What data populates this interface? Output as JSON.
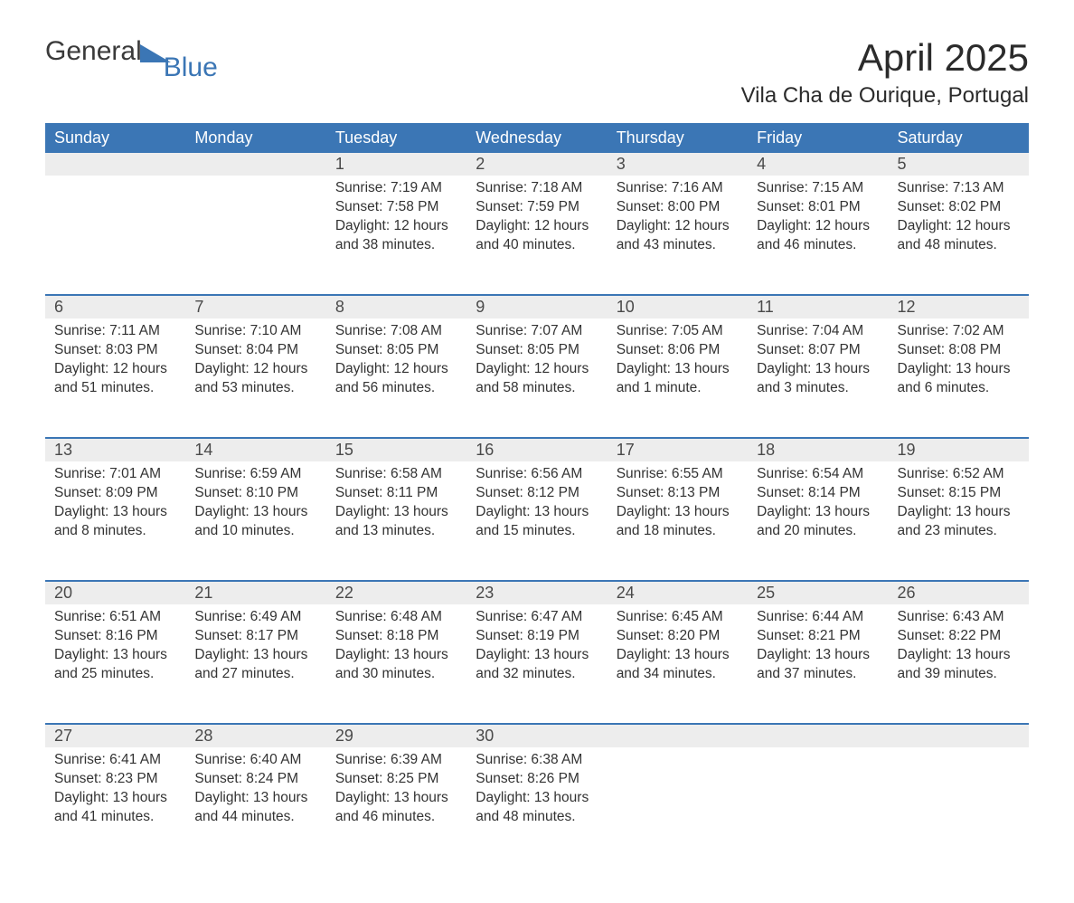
{
  "logo": {
    "text1": "General",
    "text2": "Blue",
    "tri_color": "#3b76b5"
  },
  "title": "April 2025",
  "subtitle": "Vila Cha de Ourique, Portugal",
  "colors": {
    "header_bg": "#3b76b5",
    "header_fg": "#ffffff",
    "daynum_bg": "#ededed",
    "row_border": "#3b76b5",
    "body_fg": "#333333",
    "page_bg": "#ffffff"
  },
  "fontsize": {
    "title": 42,
    "subtitle": 24,
    "header": 18,
    "daynum": 18,
    "body": 15.5
  },
  "dow": [
    "Sunday",
    "Monday",
    "Tuesday",
    "Wednesday",
    "Thursday",
    "Friday",
    "Saturday"
  ],
  "weeks": [
    [
      {
        "n": "",
        "sr": "",
        "ss": "",
        "dl": ""
      },
      {
        "n": "",
        "sr": "",
        "ss": "",
        "dl": ""
      },
      {
        "n": "1",
        "sr": "7:19 AM",
        "ss": "7:58 PM",
        "dl": "12 hours and 38 minutes."
      },
      {
        "n": "2",
        "sr": "7:18 AM",
        "ss": "7:59 PM",
        "dl": "12 hours and 40 minutes."
      },
      {
        "n": "3",
        "sr": "7:16 AM",
        "ss": "8:00 PM",
        "dl": "12 hours and 43 minutes."
      },
      {
        "n": "4",
        "sr": "7:15 AM",
        "ss": "8:01 PM",
        "dl": "12 hours and 46 minutes."
      },
      {
        "n": "5",
        "sr": "7:13 AM",
        "ss": "8:02 PM",
        "dl": "12 hours and 48 minutes."
      }
    ],
    [
      {
        "n": "6",
        "sr": "7:11 AM",
        "ss": "8:03 PM",
        "dl": "12 hours and 51 minutes."
      },
      {
        "n": "7",
        "sr": "7:10 AM",
        "ss": "8:04 PM",
        "dl": "12 hours and 53 minutes."
      },
      {
        "n": "8",
        "sr": "7:08 AM",
        "ss": "8:05 PM",
        "dl": "12 hours and 56 minutes."
      },
      {
        "n": "9",
        "sr": "7:07 AM",
        "ss": "8:05 PM",
        "dl": "12 hours and 58 minutes."
      },
      {
        "n": "10",
        "sr": "7:05 AM",
        "ss": "8:06 PM",
        "dl": "13 hours and 1 minute."
      },
      {
        "n": "11",
        "sr": "7:04 AM",
        "ss": "8:07 PM",
        "dl": "13 hours and 3 minutes."
      },
      {
        "n": "12",
        "sr": "7:02 AM",
        "ss": "8:08 PM",
        "dl": "13 hours and 6 minutes."
      }
    ],
    [
      {
        "n": "13",
        "sr": "7:01 AM",
        "ss": "8:09 PM",
        "dl": "13 hours and 8 minutes."
      },
      {
        "n": "14",
        "sr": "6:59 AM",
        "ss": "8:10 PM",
        "dl": "13 hours and 10 minutes."
      },
      {
        "n": "15",
        "sr": "6:58 AM",
        "ss": "8:11 PM",
        "dl": "13 hours and 13 minutes."
      },
      {
        "n": "16",
        "sr": "6:56 AM",
        "ss": "8:12 PM",
        "dl": "13 hours and 15 minutes."
      },
      {
        "n": "17",
        "sr": "6:55 AM",
        "ss": "8:13 PM",
        "dl": "13 hours and 18 minutes."
      },
      {
        "n": "18",
        "sr": "6:54 AM",
        "ss": "8:14 PM",
        "dl": "13 hours and 20 minutes."
      },
      {
        "n": "19",
        "sr": "6:52 AM",
        "ss": "8:15 PM",
        "dl": "13 hours and 23 minutes."
      }
    ],
    [
      {
        "n": "20",
        "sr": "6:51 AM",
        "ss": "8:16 PM",
        "dl": "13 hours and 25 minutes."
      },
      {
        "n": "21",
        "sr": "6:49 AM",
        "ss": "8:17 PM",
        "dl": "13 hours and 27 minutes."
      },
      {
        "n": "22",
        "sr": "6:48 AM",
        "ss": "8:18 PM",
        "dl": "13 hours and 30 minutes."
      },
      {
        "n": "23",
        "sr": "6:47 AM",
        "ss": "8:19 PM",
        "dl": "13 hours and 32 minutes."
      },
      {
        "n": "24",
        "sr": "6:45 AM",
        "ss": "8:20 PM",
        "dl": "13 hours and 34 minutes."
      },
      {
        "n": "25",
        "sr": "6:44 AM",
        "ss": "8:21 PM",
        "dl": "13 hours and 37 minutes."
      },
      {
        "n": "26",
        "sr": "6:43 AM",
        "ss": "8:22 PM",
        "dl": "13 hours and 39 minutes."
      }
    ],
    [
      {
        "n": "27",
        "sr": "6:41 AM",
        "ss": "8:23 PM",
        "dl": "13 hours and 41 minutes."
      },
      {
        "n": "28",
        "sr": "6:40 AM",
        "ss": "8:24 PM",
        "dl": "13 hours and 44 minutes."
      },
      {
        "n": "29",
        "sr": "6:39 AM",
        "ss": "8:25 PM",
        "dl": "13 hours and 46 minutes."
      },
      {
        "n": "30",
        "sr": "6:38 AM",
        "ss": "8:26 PM",
        "dl": "13 hours and 48 minutes."
      },
      {
        "n": "",
        "sr": "",
        "ss": "",
        "dl": ""
      },
      {
        "n": "",
        "sr": "",
        "ss": "",
        "dl": ""
      },
      {
        "n": "",
        "sr": "",
        "ss": "",
        "dl": ""
      }
    ]
  ],
  "labels": {
    "sunrise": "Sunrise: ",
    "sunset": "Sunset: ",
    "daylight": "Daylight: "
  }
}
